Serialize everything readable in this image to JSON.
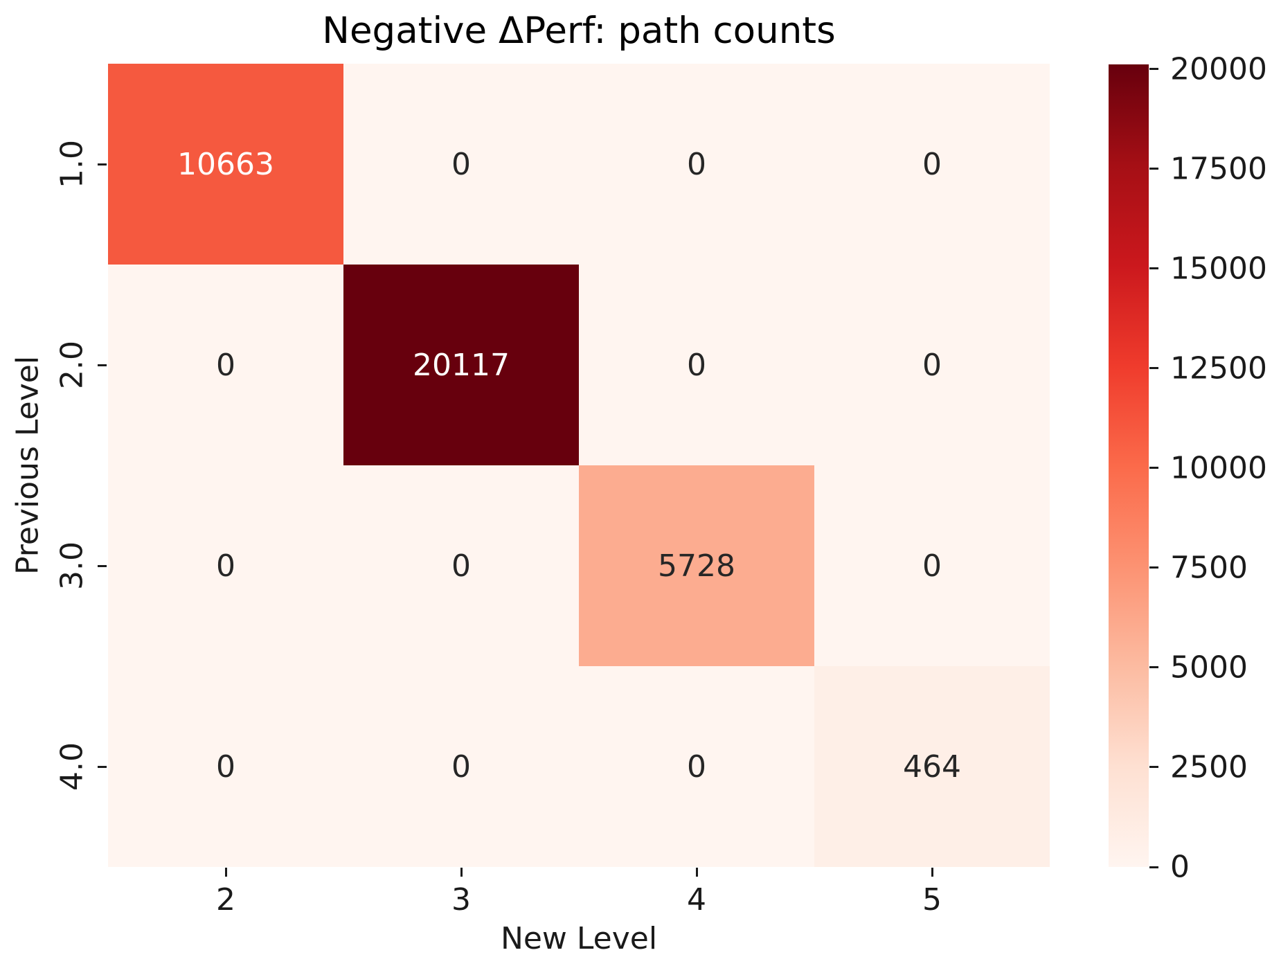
{
  "chart_data": {
    "type": "heatmap",
    "title": "Negative ΔPerf: path counts",
    "xlabel": "New Level",
    "ylabel": "Previous Level",
    "x_tick_labels": [
      "2",
      "3",
      "4",
      "5"
    ],
    "y_tick_labels": [
      "1.0",
      "2.0",
      "3.0",
      "4.0"
    ],
    "matrix": [
      [
        10663,
        0,
        0,
        0
      ],
      [
        0,
        20117,
        0,
        0
      ],
      [
        0,
        0,
        5728,
        0
      ],
      [
        0,
        0,
        0,
        464
      ]
    ],
    "vmin": 0,
    "vmax": 20117,
    "colormap": "Reds",
    "legend_position": "right",
    "grid": false,
    "colorbar_ticks": [
      0,
      2500,
      5000,
      7500,
      10000,
      12500,
      15000,
      17500,
      20000
    ],
    "cells": [
      [
        {
          "label": "10663",
          "bg": "#f5593f",
          "fg": "#ffffff"
        },
        {
          "label": "0",
          "bg": "#fff5f0",
          "fg": "#262626"
        },
        {
          "label": "0",
          "bg": "#fff5f0",
          "fg": "#262626"
        },
        {
          "label": "0",
          "bg": "#fff5f0",
          "fg": "#262626"
        }
      ],
      [
        {
          "label": "0",
          "bg": "#fff5f0",
          "fg": "#262626"
        },
        {
          "label": "20117",
          "bg": "#67000d",
          "fg": "#ffffff"
        },
        {
          "label": "0",
          "bg": "#fff5f0",
          "fg": "#262626"
        },
        {
          "label": "0",
          "bg": "#fff5f0",
          "fg": "#262626"
        }
      ],
      [
        {
          "label": "0",
          "bg": "#fff5f0",
          "fg": "#262626"
        },
        {
          "label": "0",
          "bg": "#fff5f0",
          "fg": "#262626"
        },
        {
          "label": "5728",
          "bg": "#fcac90",
          "fg": "#262626"
        },
        {
          "label": "0",
          "bg": "#fff5f0",
          "fg": "#262626"
        }
      ],
      [
        {
          "label": "0",
          "bg": "#fff5f0",
          "fg": "#262626"
        },
        {
          "label": "0",
          "bg": "#fff5f0",
          "fg": "#262626"
        },
        {
          "label": "0",
          "bg": "#fff5f0",
          "fg": "#262626"
        },
        {
          "label": "464",
          "bg": "#feefe7",
          "fg": "#262626"
        }
      ]
    ],
    "cmap_stops": [
      "#fff5f0",
      "#fee0d2",
      "#fcbba1",
      "#fc9272",
      "#fb6a4a",
      "#ef3b2c",
      "#cb181d",
      "#a50f15",
      "#67000d"
    ]
  }
}
